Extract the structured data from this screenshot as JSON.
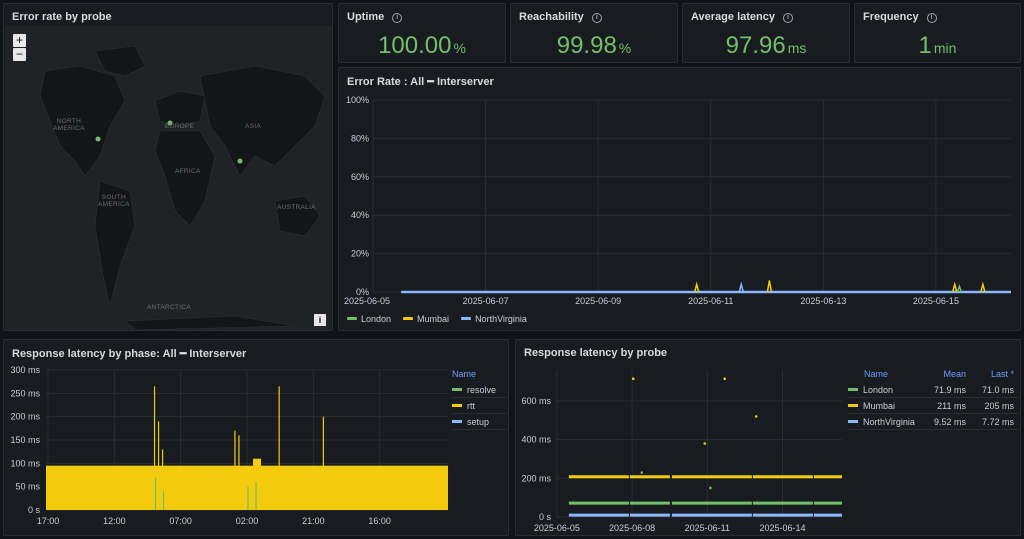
{
  "map_panel": {
    "title": "Error rate by probe",
    "zoom_in": "+",
    "zoom_out": "−",
    "info": "i",
    "labels": {
      "north_america": "NORTH\nAMERICA",
      "europe": "EUROPE",
      "asia": "ASIA",
      "africa": "AFRICA",
      "south_america": "SOUTH\nAMERICA",
      "australia": "AUSTRALIA",
      "antarctica": "ANTARCTICA"
    },
    "probe_color": "#73bf69"
  },
  "stats": [
    {
      "title": "Uptime",
      "value": "100.00",
      "unit": "%"
    },
    {
      "title": "Reachability",
      "value": "99.98",
      "unit": "%"
    },
    {
      "title": "Average latency",
      "value": "97.96",
      "unit": "ms"
    },
    {
      "title": "Frequency",
      "value": "1",
      "unit": "min"
    }
  ],
  "colors": {
    "green": "#73bf69",
    "yellow": "#f2cc0c",
    "blue": "#8ab8ff"
  },
  "chart_data": [
    {
      "type": "line",
      "title": "Error Rate : All ━ Interserver",
      "x_ticks": [
        "2025-06-05",
        "2025-06-07",
        "2025-06-09",
        "2025-06-11",
        "2025-06-13",
        "2025-06-15"
      ],
      "y_ticks": [
        "0%",
        "20%",
        "40%",
        "60%",
        "80%",
        "100%"
      ],
      "ylim": [
        0,
        100
      ],
      "series": [
        {
          "name": "London",
          "color": "#73bf69",
          "spikes": [
            [
              "2025-06-15T10:00",
              3
            ]
          ]
        },
        {
          "name": "Mumbai",
          "color": "#f2cc0c",
          "spikes": [
            [
              "2025-06-10T18:00",
              4
            ],
            [
              "2025-06-12T01:00",
              6
            ],
            [
              "2025-06-15T08:00",
              4
            ],
            [
              "2025-06-15T20:00",
              4
            ]
          ]
        },
        {
          "name": "NorthVirginia",
          "color": "#8ab8ff",
          "spikes": [
            [
              "2025-06-11T13:00",
              4
            ]
          ]
        }
      ]
    },
    {
      "type": "area",
      "title": "Response latency by phase: All ━ Interserver",
      "x_ticks": [
        "17:00",
        "12:00",
        "07:00",
        "02:00",
        "21:00",
        "16:00"
      ],
      "y_ticks": [
        "0 s",
        "50 ms",
        "100 ms",
        "150 ms",
        "200 ms",
        "250 ms",
        "300 ms"
      ],
      "ylim": [
        0,
        300
      ],
      "legend_header": "Name",
      "series": [
        {
          "name": "resolve",
          "color": "#73bf69",
          "baseline": 2
        },
        {
          "name": "rtt",
          "color": "#f2cc0c",
          "baseline": 95
        },
        {
          "name": "setup",
          "color": "#8ab8ff",
          "baseline": 1
        }
      ],
      "rtt_spikes": [
        [
          0.27,
          265
        ],
        [
          0.28,
          190
        ],
        [
          0.29,
          130
        ],
        [
          0.47,
          170
        ],
        [
          0.48,
          160
        ],
        [
          0.58,
          265
        ],
        [
          0.69,
          200
        ],
        [
          0.88,
          70
        ]
      ],
      "resolve_spikes": [
        [
          0.27,
          70
        ],
        [
          0.29,
          40
        ],
        [
          0.5,
          50
        ],
        [
          0.52,
          60
        ]
      ]
    },
    {
      "type": "scatter",
      "title": "Response latency by probe",
      "x_ticks": [
        "2025-06-05",
        "2025-06-08",
        "2025-06-11",
        "2025-06-14"
      ],
      "y_ticks": [
        "0 s",
        "200 ms",
        "400 ms",
        "600 ms"
      ],
      "ylim": [
        0,
        760
      ],
      "table": {
        "headers": [
          "Name",
          "Mean",
          "Last *"
        ],
        "rows": [
          [
            "London",
            "71.9 ms",
            "71.0 ms"
          ],
          [
            "Mumbai",
            "211 ms",
            "205 ms"
          ],
          [
            "NorthVirginia",
            "9.52 ms",
            "7.72 ms"
          ]
        ]
      },
      "series": [
        {
          "name": "London",
          "color": "#73bf69",
          "level": 72
        },
        {
          "name": "Mumbai",
          "color": "#f2cc0c",
          "level": 208
        },
        {
          "name": "NorthVirginia",
          "color": "#8ab8ff",
          "level": 10
        }
      ],
      "outliers": [
        [
          0.27,
          715,
          "#f2cc0c"
        ],
        [
          0.59,
          715,
          "#f2cc0c"
        ],
        [
          0.7,
          520,
          "#f2cc0c"
        ],
        [
          0.52,
          380,
          "#f2cc0c"
        ],
        [
          0.54,
          150,
          "#73bf69"
        ],
        [
          0.3,
          230,
          "#73bf69"
        ]
      ]
    }
  ]
}
